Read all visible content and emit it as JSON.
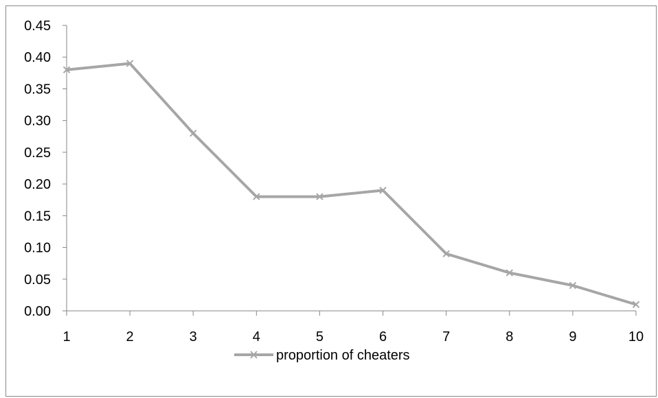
{
  "chart_data": {
    "type": "line",
    "x": [
      1,
      2,
      3,
      4,
      5,
      6,
      7,
      8,
      9,
      10
    ],
    "series": [
      {
        "name": "proportion of cheaters",
        "values": [
          0.38,
          0.39,
          0.28,
          0.18,
          0.18,
          0.19,
          0.09,
          0.06,
          0.04,
          0.01
        ],
        "color": "#a6a6a6",
        "marker": "x"
      }
    ],
    "ylim": [
      0,
      0.45
    ],
    "yticks": [
      "0.00",
      "0.05",
      "0.10",
      "0.15",
      "0.20",
      "0.25",
      "0.30",
      "0.35",
      "0.40",
      "0.45"
    ],
    "xticks": [
      "1",
      "2",
      "3",
      "4",
      "5",
      "6",
      "7",
      "8",
      "9",
      "10"
    ],
    "grid": false,
    "legend_position": "bottom"
  }
}
